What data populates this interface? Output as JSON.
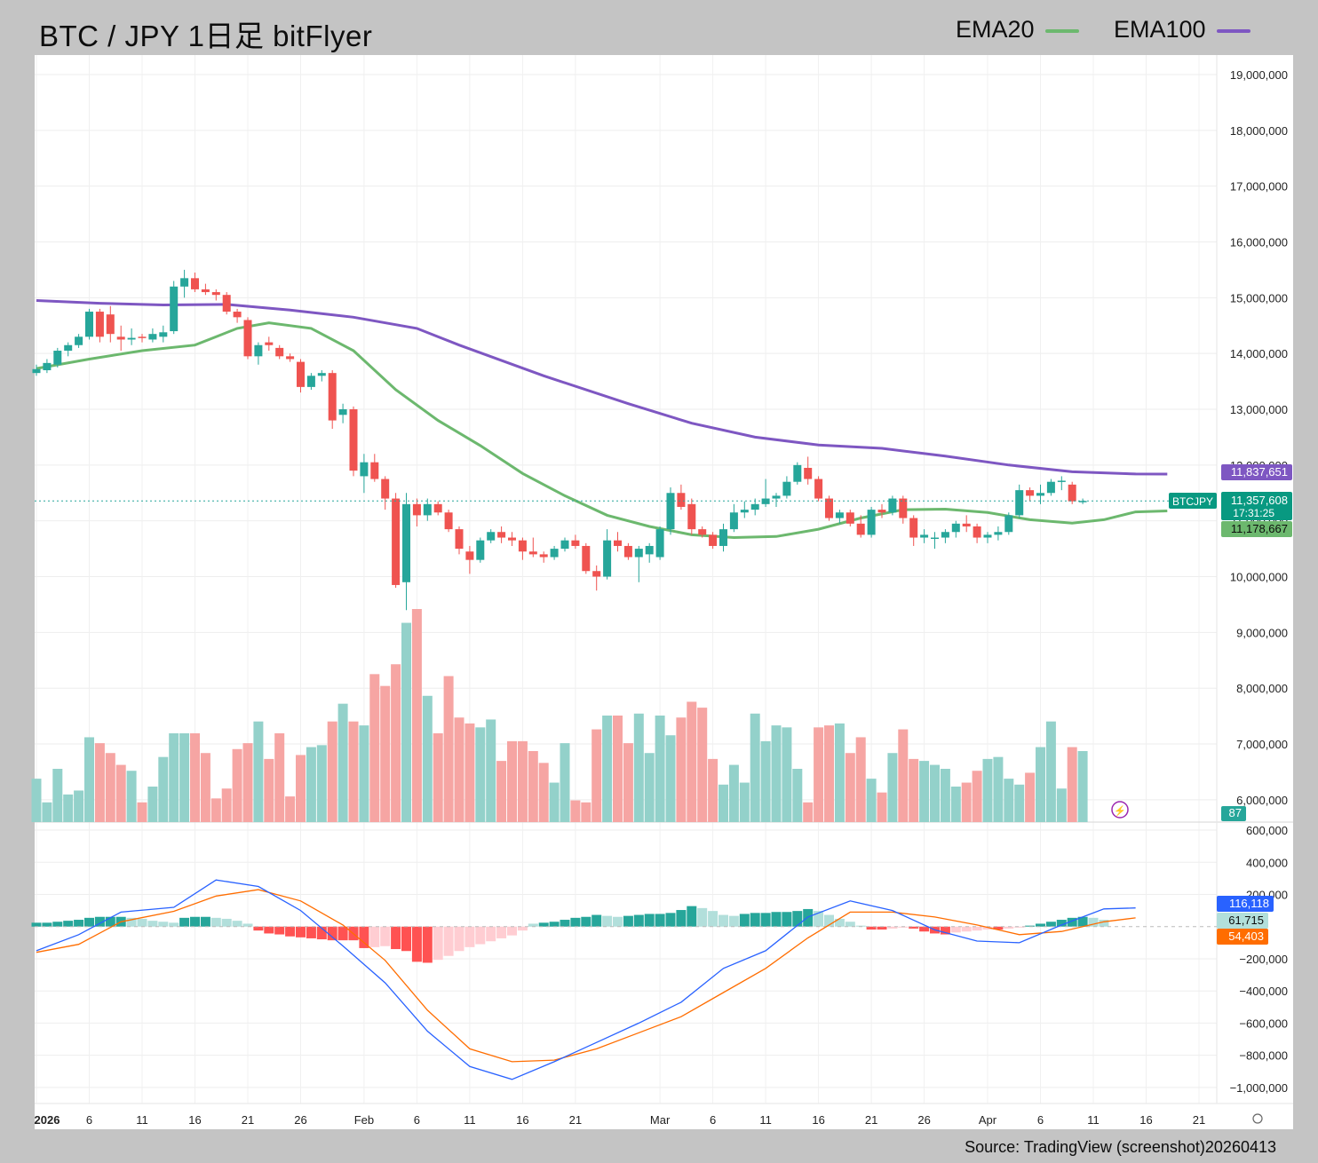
{
  "header": {
    "title": "BTC / JPY 1日足 bitFlyer",
    "legend": [
      {
        "label": "EMA20",
        "color": "#6cb86e"
      },
      {
        "label": "EMA100",
        "color": "#7e57c2"
      }
    ]
  },
  "source": "Source: TradingView (screenshot)20260413",
  "colors": {
    "up": "#26a69a",
    "down": "#ef5350",
    "ema20": "#6cb86e",
    "ema100": "#7e57c2",
    "macd": "#2962ff",
    "signal": "#ff6d00"
  },
  "chart_data": {
    "type": "candlestick",
    "symbol": "BTCJPY",
    "price_axis": {
      "range": [
        5600000,
        19350000
      ],
      "ticks": [
        "19,000,000",
        "18,000,000",
        "17,000,000",
        "16,000,000",
        "15,000,000",
        "14,000,000",
        "13,000,000",
        "12,000,000",
        "11,000,000",
        "10,000,000",
        "9,000,000",
        "8,000,000",
        "7,000,000",
        "6,000,000"
      ]
    },
    "macd_axis": {
      "range": [
        -1100000,
        650000
      ],
      "ticks": [
        "600,000",
        "400,000",
        "200,000",
        "−200,000",
        "−400,000",
        "−600,000",
        "−800,000",
        "−1,000,000"
      ]
    },
    "x_ticks": [
      "2026",
      "6",
      "11",
      "16",
      "21",
      "26",
      "Feb",
      "6",
      "11",
      "16",
      "21",
      "Mar",
      "6",
      "11",
      "16",
      "21",
      "26",
      "Apr",
      "6",
      "11",
      "16",
      "21"
    ],
    "x_tick_day_index": [
      0,
      5,
      10,
      15,
      20,
      25,
      31,
      36,
      41,
      46,
      51,
      59,
      64,
      69,
      74,
      79,
      84,
      90,
      95,
      100,
      105,
      110
    ],
    "candles_ohlc": [
      [
        13650000,
        13800000,
        13600000,
        13720000
      ],
      [
        13700000,
        13900000,
        13650000,
        13830000
      ],
      [
        13800000,
        14100000,
        13750000,
        14050000
      ],
      [
        14050000,
        14200000,
        13950000,
        14150000
      ],
      [
        14150000,
        14350000,
        14100000,
        14300000
      ],
      [
        14300000,
        14800000,
        14250000,
        14750000
      ],
      [
        14750000,
        14800000,
        14200000,
        14300000
      ],
      [
        14700000,
        14850000,
        14200000,
        14350000
      ],
      [
        14300000,
        14500000,
        14050000,
        14250000
      ],
      [
        14250000,
        14450000,
        14150000,
        14280000
      ],
      [
        14300000,
        14350000,
        14200000,
        14280000
      ],
      [
        14250000,
        14450000,
        14200000,
        14350000
      ],
      [
        14300000,
        14500000,
        14200000,
        14380000
      ],
      [
        14400000,
        15300000,
        14350000,
        15200000
      ],
      [
        15200000,
        15500000,
        15000000,
        15350000
      ],
      [
        15350000,
        15450000,
        15100000,
        15150000
      ],
      [
        15150000,
        15250000,
        15050000,
        15100000
      ],
      [
        15100000,
        15150000,
        14950000,
        15050000
      ],
      [
        15050000,
        15100000,
        14700000,
        14750000
      ],
      [
        14750000,
        14800000,
        14550000,
        14650000
      ],
      [
        14600000,
        14650000,
        13900000,
        13950000
      ],
      [
        13950000,
        14200000,
        13800000,
        14150000
      ],
      [
        14200000,
        14300000,
        14050000,
        14150000
      ],
      [
        14100000,
        14150000,
        13900000,
        13950000
      ],
      [
        13950000,
        14000000,
        13850000,
        13900000
      ],
      [
        13850000,
        13900000,
        13300000,
        13400000
      ],
      [
        13400000,
        13650000,
        13350000,
        13600000
      ],
      [
        13600000,
        13700000,
        13500000,
        13650000
      ],
      [
        13650000,
        13700000,
        12650000,
        12800000
      ],
      [
        12900000,
        13100000,
        12750000,
        13000000
      ],
      [
        13000000,
        13050000,
        11800000,
        11900000
      ],
      [
        11800000,
        12200000,
        11500000,
        12050000
      ],
      [
        12050000,
        12200000,
        11700000,
        11750000
      ],
      [
        11750000,
        11800000,
        11200000,
        11400000
      ],
      [
        11400000,
        11500000,
        9800000,
        9850000
      ],
      [
        9900000,
        11500000,
        9400000,
        11300000
      ],
      [
        11300000,
        11400000,
        10900000,
        11100000
      ],
      [
        11100000,
        11400000,
        11000000,
        11300000
      ],
      [
        11300000,
        11350000,
        11100000,
        11150000
      ],
      [
        11150000,
        11200000,
        10800000,
        10850000
      ],
      [
        10850000,
        10900000,
        10400000,
        10500000
      ],
      [
        10450000,
        10550000,
        10050000,
        10300000
      ],
      [
        10300000,
        10700000,
        10250000,
        10650000
      ],
      [
        10650000,
        10850000,
        10600000,
        10800000
      ],
      [
        10800000,
        10900000,
        10600000,
        10700000
      ],
      [
        10700000,
        10800000,
        10550000,
        10650000
      ],
      [
        10650000,
        10700000,
        10300000,
        10450000
      ],
      [
        10450000,
        10700000,
        10350000,
        10400000
      ],
      [
        10400000,
        10450000,
        10250000,
        10350000
      ],
      [
        10350000,
        10550000,
        10300000,
        10500000
      ],
      [
        10500000,
        10700000,
        10450000,
        10650000
      ],
      [
        10650000,
        10750000,
        10500000,
        10550000
      ],
      [
        10550000,
        10600000,
        10050000,
        10100000
      ],
      [
        10100000,
        10200000,
        9750000,
        10000000
      ],
      [
        10000000,
        10850000,
        9950000,
        10650000
      ],
      [
        10650000,
        10800000,
        10450000,
        10550000
      ],
      [
        10550000,
        10600000,
        10300000,
        10350000
      ],
      [
        10350000,
        10550000,
        9900000,
        10500000
      ],
      [
        10400000,
        10600000,
        10250000,
        10550000
      ],
      [
        10350000,
        10900000,
        10300000,
        10850000
      ],
      [
        10850000,
        11600000,
        10750000,
        11500000
      ],
      [
        11500000,
        11650000,
        11200000,
        11250000
      ],
      [
        11300000,
        11400000,
        10750000,
        10850000
      ],
      [
        10850000,
        10900000,
        10700000,
        10750000
      ],
      [
        10750000,
        10800000,
        10500000,
        10550000
      ],
      [
        10550000,
        10950000,
        10450000,
        10850000
      ],
      [
        10850000,
        11300000,
        10800000,
        11150000
      ],
      [
        11150000,
        11350000,
        11050000,
        11200000
      ],
      [
        11200000,
        11400000,
        11100000,
        11300000
      ],
      [
        11300000,
        11750000,
        11250000,
        11400000
      ],
      [
        11400000,
        11500000,
        11250000,
        11450000
      ],
      [
        11450000,
        11800000,
        11400000,
        11700000
      ],
      [
        11700000,
        12050000,
        11650000,
        12000000
      ],
      [
        11950000,
        12150000,
        11650000,
        11750000
      ],
      [
        11750000,
        11800000,
        11350000,
        11400000
      ],
      [
        11400000,
        11450000,
        11000000,
        11050000
      ],
      [
        11050000,
        11200000,
        10950000,
        11150000
      ],
      [
        11150000,
        11200000,
        10900000,
        10950000
      ],
      [
        10950000,
        11100000,
        10700000,
        10750000
      ],
      [
        10750000,
        11250000,
        10700000,
        11200000
      ],
      [
        11200000,
        11300000,
        11050000,
        11150000
      ],
      [
        11150000,
        11450000,
        11100000,
        11400000
      ],
      [
        11400000,
        11450000,
        10950000,
        11050000
      ],
      [
        11050000,
        11100000,
        10550000,
        10700000
      ],
      [
        10700000,
        10850000,
        10600000,
        10750000
      ],
      [
        10700000,
        10800000,
        10500000,
        10700000
      ],
      [
        10700000,
        10850000,
        10600000,
        10800000
      ],
      [
        10800000,
        11000000,
        10700000,
        10950000
      ],
      [
        10950000,
        11100000,
        10800000,
        10900000
      ],
      [
        10900000,
        10950000,
        10600000,
        10700000
      ],
      [
        10700000,
        10800000,
        10600000,
        10750000
      ],
      [
        10750000,
        10900000,
        10650000,
        10800000
      ],
      [
        10800000,
        11150000,
        10750000,
        11100000
      ],
      [
        11100000,
        11650000,
        11050000,
        11550000
      ],
      [
        11550000,
        11600000,
        11350000,
        11450000
      ],
      [
        11450000,
        11650000,
        11300000,
        11500000
      ],
      [
        11500000,
        11750000,
        11450000,
        11700000
      ],
      [
        11700000,
        11800000,
        11550000,
        11720000
      ],
      [
        11650000,
        11700000,
        11300000,
        11350000
      ],
      [
        11350000,
        11400000,
        11300000,
        11357608
      ]
    ],
    "volume": {
      "bars": [
        0.22,
        0.1,
        0.27,
        0.14,
        0.16,
        0.43,
        0.4,
        0.35,
        0.29,
        0.26,
        0.1,
        0.18,
        0.33,
        0.45,
        0.45,
        0.45,
        0.35,
        0.12,
        0.17,
        0.37,
        0.4,
        0.51,
        0.32,
        0.45,
        0.13,
        0.34,
        0.38,
        0.39,
        0.51,
        0.6,
        0.51,
        0.49,
        0.75,
        0.69,
        0.8,
        1.01,
        1.08,
        0.64,
        0.45,
        0.74,
        0.53,
        0.5,
        0.48,
        0.52,
        0.31,
        0.41,
        0.41,
        0.36,
        0.3,
        0.2,
        0.4,
        0.11,
        0.1,
        0.47,
        0.54,
        0.54,
        0.4,
        0.55,
        0.35,
        0.54,
        0.44,
        0.53,
        0.61,
        0.58,
        0.32,
        0.19,
        0.29,
        0.2,
        0.55,
        0.41,
        0.49,
        0.48,
        0.27,
        0.1,
        0.48,
        0.49,
        0.5,
        0.35,
        0.43,
        0.22,
        0.15,
        0.35,
        0.47,
        0.32,
        0.31,
        0.29,
        0.27,
        0.18,
        0.2,
        0.26,
        0.32,
        0.33,
        0.22,
        0.19,
        0.25,
        0.38,
        0.51,
        0.17,
        0.38,
        0.36,
        0.35,
        0.29,
        0.07
      ],
      "last_label": "87"
    },
    "ema20": [
      [
        0,
        13730000
      ],
      [
        5,
        13900000
      ],
      [
        10,
        14050000
      ],
      [
        15,
        14150000
      ],
      [
        19,
        14450000
      ],
      [
        22,
        14550000
      ],
      [
        26,
        14450000
      ],
      [
        30,
        14050000
      ],
      [
        34,
        13350000
      ],
      [
        38,
        12800000
      ],
      [
        42,
        12350000
      ],
      [
        46,
        11850000
      ],
      [
        50,
        11450000
      ],
      [
        54,
        11100000
      ],
      [
        58,
        10900000
      ],
      [
        62,
        10750000
      ],
      [
        66,
        10700000
      ],
      [
        70,
        10720000
      ],
      [
        74,
        10850000
      ],
      [
        78,
        11050000
      ],
      [
        82,
        11200000
      ],
      [
        86,
        11210000
      ],
      [
        90,
        11150000
      ],
      [
        94,
        11020000
      ],
      [
        98,
        10960000
      ],
      [
        101,
        11020000
      ],
      [
        104,
        11160000
      ],
      [
        107,
        11178667
      ]
    ],
    "ema100": [
      [
        0,
        14950000
      ],
      [
        6,
        14900000
      ],
      [
        12,
        14870000
      ],
      [
        18,
        14880000
      ],
      [
        24,
        14780000
      ],
      [
        30,
        14650000
      ],
      [
        36,
        14450000
      ],
      [
        40,
        14150000
      ],
      [
        48,
        13600000
      ],
      [
        56,
        13100000
      ],
      [
        62,
        12750000
      ],
      [
        68,
        12500000
      ],
      [
        74,
        12360000
      ],
      [
        80,
        12300000
      ],
      [
        86,
        12160000
      ],
      [
        92,
        12000000
      ],
      [
        98,
        11880000
      ],
      [
        104,
        11840000
      ],
      [
        107,
        11837651
      ]
    ],
    "macd": [
      [
        0,
        -150000
      ],
      [
        4,
        -50000
      ],
      [
        8,
        90000
      ],
      [
        13,
        120000
      ],
      [
        17,
        290000
      ],
      [
        21,
        250000
      ],
      [
        25,
        100000
      ],
      [
        29,
        -120000
      ],
      [
        33,
        -350000
      ],
      [
        37,
        -650000
      ],
      [
        41,
        -870000
      ],
      [
        45,
        -950000
      ],
      [
        49,
        -840000
      ],
      [
        53,
        -720000
      ],
      [
        57,
        -600000
      ],
      [
        61,
        -470000
      ],
      [
        65,
        -260000
      ],
      [
        69,
        -150000
      ],
      [
        73,
        60000
      ],
      [
        77,
        160000
      ],
      [
        81,
        100000
      ],
      [
        85,
        -20000
      ],
      [
        89,
        -90000
      ],
      [
        93,
        -100000
      ],
      [
        97,
        10000
      ],
      [
        101,
        110000
      ],
      [
        104,
        116118
      ]
    ],
    "signal": [
      [
        0,
        -160000
      ],
      [
        4,
        -110000
      ],
      [
        8,
        30000
      ],
      [
        13,
        95000
      ],
      [
        17,
        190000
      ],
      [
        21,
        230000
      ],
      [
        25,
        160000
      ],
      [
        29,
        10000
      ],
      [
        33,
        -210000
      ],
      [
        37,
        -520000
      ],
      [
        41,
        -760000
      ],
      [
        45,
        -840000
      ],
      [
        49,
        -830000
      ],
      [
        53,
        -760000
      ],
      [
        57,
        -660000
      ],
      [
        61,
        -560000
      ],
      [
        65,
        -410000
      ],
      [
        69,
        -260000
      ],
      [
        73,
        -70000
      ],
      [
        77,
        90000
      ],
      [
        81,
        90000
      ],
      [
        85,
        60000
      ],
      [
        89,
        10000
      ],
      [
        93,
        -50000
      ],
      [
        97,
        -30000
      ],
      [
        101,
        30000
      ],
      [
        104,
        54403
      ]
    ],
    "macd_histogram": [
      0.4,
      0.4,
      0.5,
      0.6,
      0.7,
      0.9,
      1.0,
      1.0,
      1.0,
      0.9,
      0.8,
      0.6,
      0.5,
      0.4,
      0.9,
      1.0,
      1.0,
      0.9,
      0.8,
      0.6,
      0.3,
      -0.4,
      -0.7,
      -0.8,
      -1.0,
      -1.1,
      -1.2,
      -1.3,
      -1.4,
      -1.4,
      -1.4,
      -2.2,
      -2.1,
      -2.0,
      -2.3,
      -2.5,
      -3.6,
      -3.7,
      -3.4,
      -3.0,
      -2.5,
      -2.1,
      -1.8,
      -1.5,
      -1.2,
      -0.9,
      -0.4,
      0.3,
      0.4,
      0.5,
      0.7,
      0.9,
      1.0,
      1.2,
      1.1,
      1.0,
      1.1,
      1.2,
      1.3,
      1.3,
      1.4,
      1.7,
      2.1,
      1.9,
      1.6,
      1.2,
      1.1,
      1.3,
      1.4,
      1.4,
      1.5,
      1.5,
      1.6,
      1.8,
      1.6,
      1.2,
      0.8,
      0.5,
      0.1,
      -0.3,
      -0.3,
      -0.2,
      -0.1,
      -0.2,
      -0.5,
      -0.7,
      -0.8,
      -0.6,
      -0.5,
      -0.4,
      -0.3,
      -0.3,
      -0.2,
      -0.1,
      0.1,
      0.3,
      0.5,
      0.7,
      0.9,
      1.0,
      0.9,
      0.7
    ],
    "price_labels": {
      "ema100_last": "11,837,651",
      "close_last": "11,357,608",
      "countdown": "17:31:25",
      "ema20_last": "11,178,667",
      "symbol": "BTCJPY"
    },
    "macd_labels": {
      "macd_last": "116,118",
      "hist_last": "61,715",
      "signal_last": "54,403"
    }
  }
}
